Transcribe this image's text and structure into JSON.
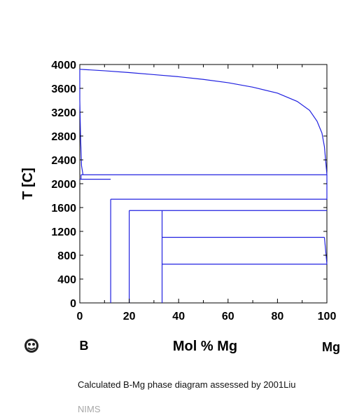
{
  "chart_data": {
    "type": "phase_diagram",
    "title": "",
    "xlabel": "Mol % Mg",
    "ylabel": "T [C]",
    "xlim": [
      0,
      100
    ],
    "ylim": [
      0,
      4000
    ],
    "x_ticks": [
      "0",
      "20",
      "40",
      "60",
      "80",
      "100"
    ],
    "y_ticks": [
      "0",
      "400",
      "800",
      "1200",
      "1600",
      "2000",
      "2400",
      "2800",
      "3200",
      "3600",
      "4000"
    ],
    "left_element": "B",
    "right_element": "Mg",
    "line_color": "#2020e0",
    "liquidus": [
      [
        0,
        3920
      ],
      [
        2,
        3915
      ],
      [
        10,
        3895
      ],
      [
        20,
        3865
      ],
      [
        30,
        3830
      ],
      [
        40,
        3795
      ],
      [
        50,
        3750
      ],
      [
        60,
        3695
      ],
      [
        70,
        3620
      ],
      [
        80,
        3520
      ],
      [
        88,
        3380
      ],
      [
        93,
        3230
      ],
      [
        96,
        3050
      ],
      [
        98,
        2850
      ],
      [
        99,
        2620
      ],
      [
        100,
        2150
      ]
    ],
    "boron_rich_boundary": [
      [
        0,
        3920
      ],
      [
        0,
        3400
      ],
      [
        0.3,
        2800
      ],
      [
        0.7,
        2300
      ],
      [
        1.3,
        2150
      ]
    ],
    "invariant_lines": [
      {
        "x1": 0.5,
        "x2": 100,
        "y": 2150
      },
      {
        "x1": 0,
        "x2": 12.5,
        "y": 2075
      },
      {
        "x1": 12.5,
        "x2": 100,
        "y": 1740
      },
      {
        "x1": 20,
        "x2": 100,
        "y": 1550
      },
      {
        "x1": 33.3,
        "x2": 99,
        "y": 1100
      },
      {
        "x1": 33.3,
        "x2": 100,
        "y": 650
      }
    ],
    "compound_lines": [
      {
        "x": 12.5,
        "y_top": 1740
      },
      {
        "x": 20,
        "y_top": 1550
      },
      {
        "x": 33.3,
        "y_top": 1550
      }
    ],
    "mg_side_segment": [
      [
        99,
        1100
      ],
      [
        100,
        650
      ]
    ]
  },
  "caption": "Calculated B-Mg phase diagram assessed by 2001Liu",
  "source": "NIMS"
}
